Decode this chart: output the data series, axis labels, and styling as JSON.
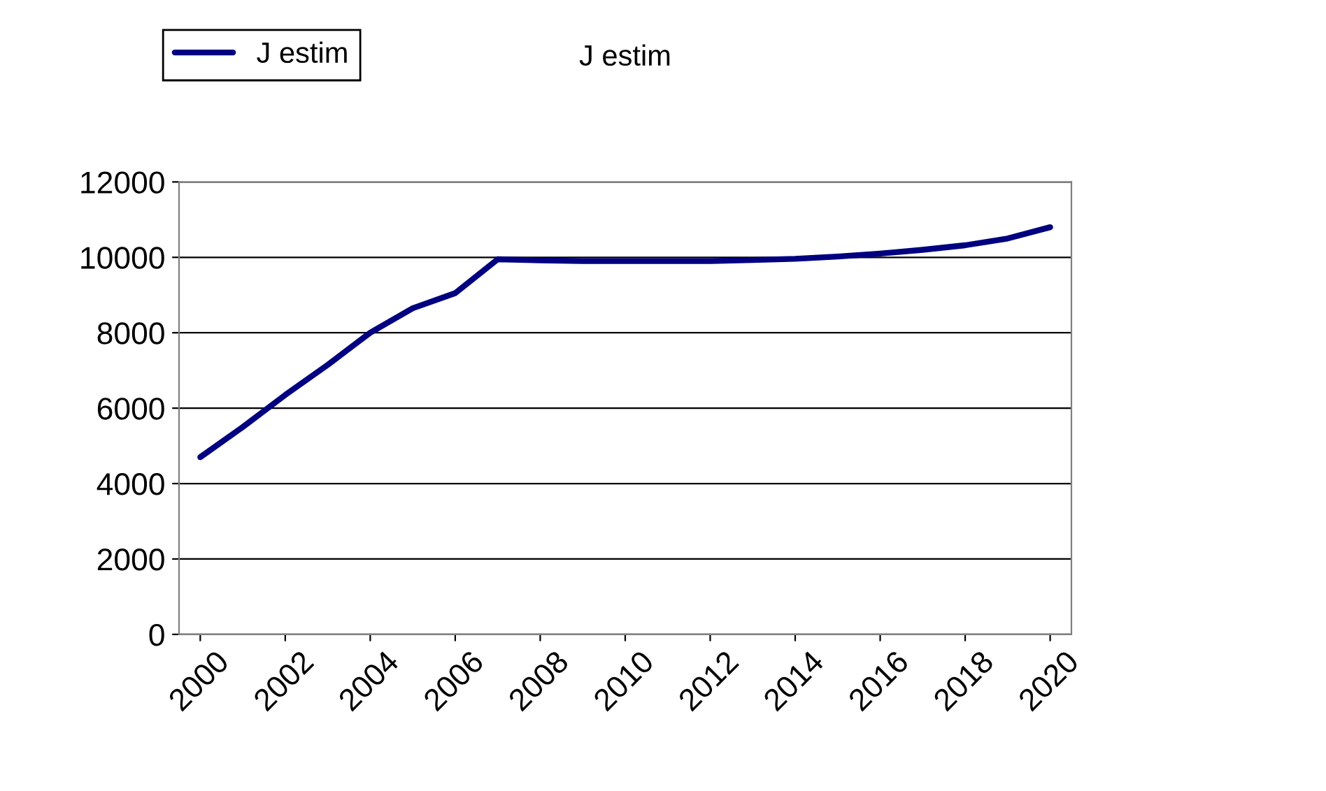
{
  "chart_data": {
    "type": "line",
    "title": "J estim",
    "x": [
      2000,
      2001,
      2002,
      2003,
      2004,
      2005,
      2006,
      2007,
      2008,
      2009,
      2010,
      2011,
      2012,
      2013,
      2014,
      2015,
      2016,
      2017,
      2018,
      2019,
      2020
    ],
    "series": [
      {
        "name": "J estim",
        "color": "#000080",
        "values": [
          4700,
          5500,
          6350,
          7150,
          8000,
          8650,
          9050,
          9950,
          9920,
          9900,
          9900,
          9900,
          9900,
          9930,
          9960,
          10020,
          10100,
          10200,
          10320,
          10500,
          10800
        ]
      }
    ],
    "xlim": [
      1999.5,
      2020.5
    ],
    "xticks": [
      2000,
      2002,
      2004,
      2006,
      2008,
      2010,
      2012,
      2014,
      2016,
      2018,
      2020
    ],
    "ylim": [
      0,
      12000
    ],
    "yticks": [
      0,
      2000,
      4000,
      6000,
      8000,
      10000,
      12000
    ],
    "grid": "y",
    "legend": "top left",
    "marker": "none",
    "line_style": "solid"
  }
}
